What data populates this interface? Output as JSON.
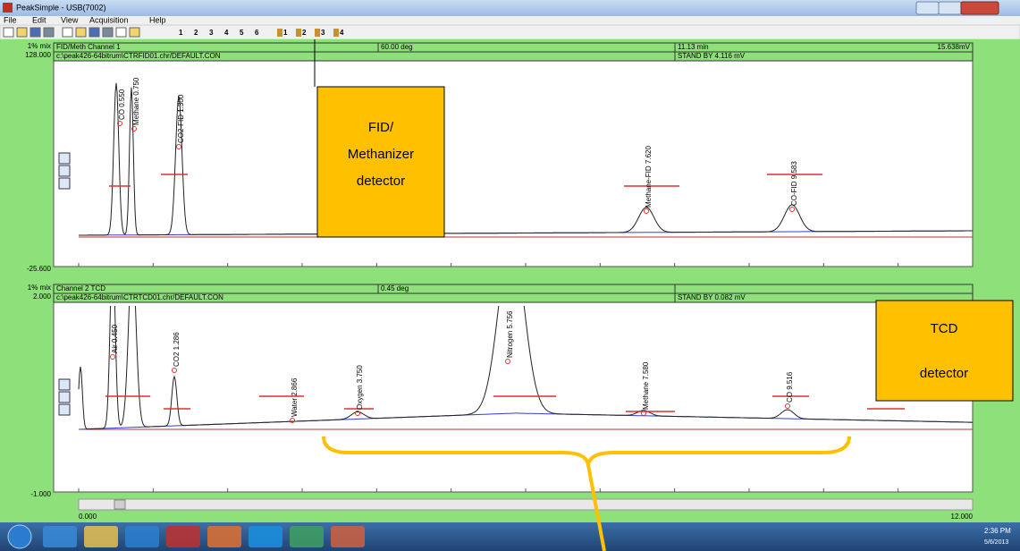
{
  "window": {
    "title": "PeakSimple - USB(7002)"
  },
  "menu": [
    "File",
    "Edit",
    "View",
    "Acquisition",
    "Help"
  ],
  "toolbar": {
    "channels": [
      "1",
      "2",
      "3",
      "4",
      "5",
      "6"
    ],
    "detectors": [
      "1",
      "2",
      "3",
      "4"
    ]
  },
  "channel1": {
    "mix": "1% mix",
    "ymax": "128.000",
    "ymin": "-25.600",
    "name": "FID/Meth Channel 1",
    "temp": "60.00 deg",
    "time": "11.13 min",
    "signal": "15.638mV",
    "file": "c:\\peak426-64bitrum\\CTRFID01.chr/DEFAULT.CON",
    "status": "STAND BY 4.116 mV",
    "peaks": [
      "CO 0.550",
      "Methane 0.750",
      "CO2-FID 1.300",
      "Methane-FID 7.620",
      "CO-FID 9.583"
    ]
  },
  "channel2": {
    "mix": "1% mix",
    "ymax": "2.000",
    "ymin": "-1.000",
    "name": "Channel 2 TCD",
    "temp": "0.45 deg",
    "file": "c:\\peak426-64bitrum\\CTRTCD01.chr/DEFAULT.CON",
    "status": "STAND BY 0.082 mV",
    "peaks": [
      "Air 0.450",
      "CO2 1.286",
      "Water 2.866",
      "Oxygen 3.750",
      "Nitrogen 5.756",
      "Methane 7.580",
      "CO 9.516"
    ]
  },
  "time_axis": {
    "start": "0.000",
    "end": "12.000"
  },
  "annotations": {
    "fid": [
      "FID/",
      "Methanizer",
      "detector"
    ],
    "tcd": [
      "TCD",
      "detector"
    ]
  },
  "taskbar": {
    "time": "2:36 PM",
    "date": "5/6/2013"
  }
}
